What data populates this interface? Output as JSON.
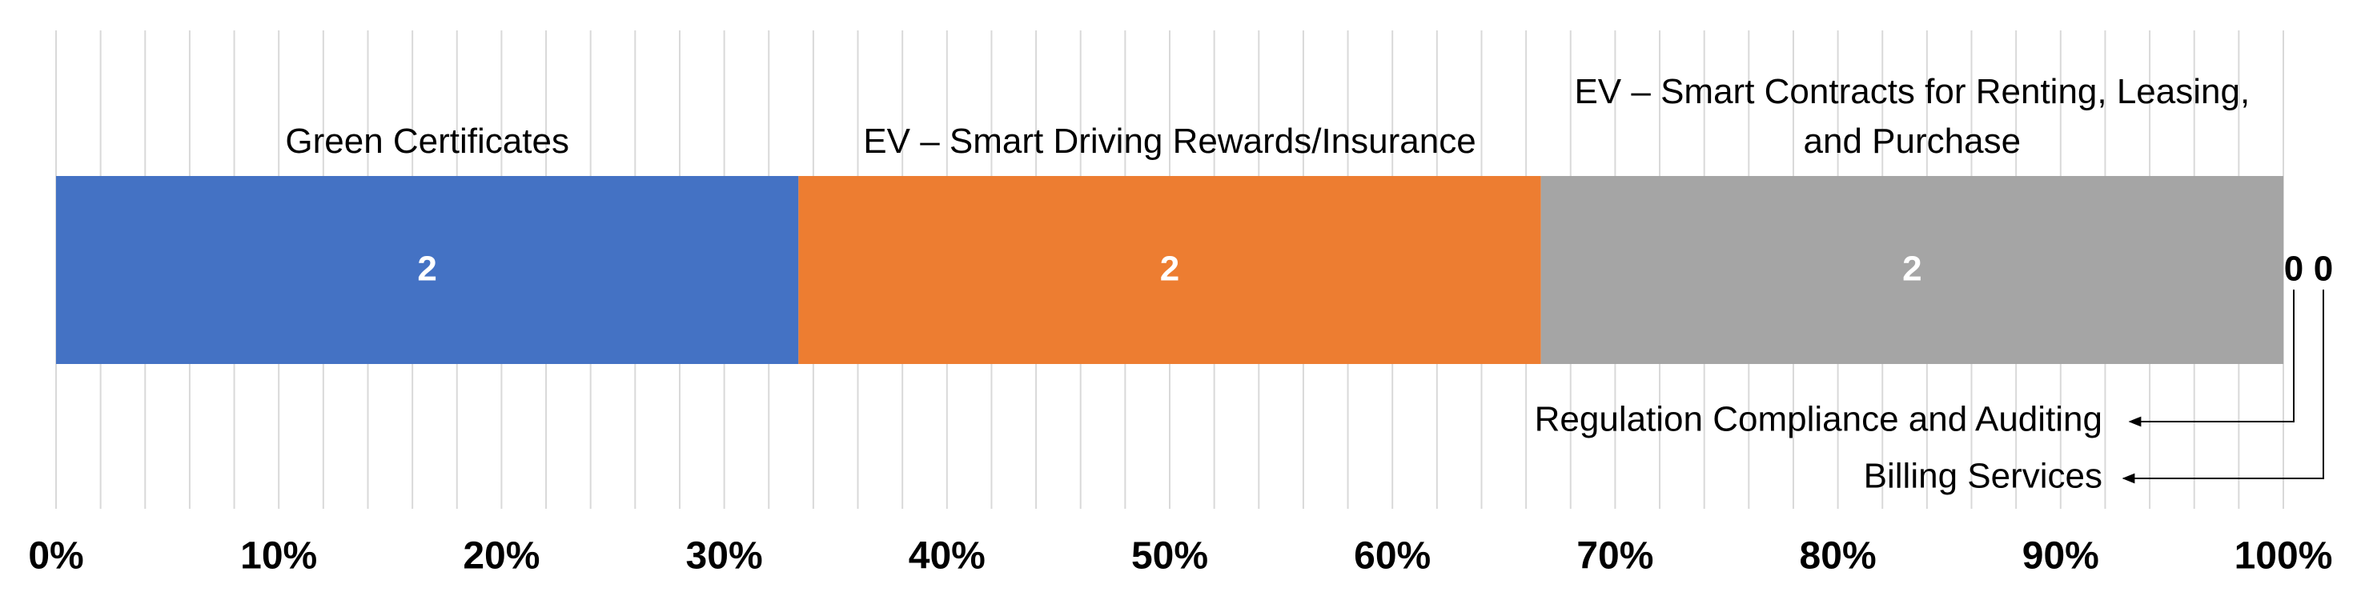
{
  "chart_data": {
    "type": "bar",
    "orientation": "horizontal",
    "stacked": "percent",
    "series": [
      {
        "name": "Green Certificates",
        "color": "#4472c4",
        "values": [
          2
        ]
      },
      {
        "name": "EV – Smart Driving Rewards/Insurance",
        "color": "#ed7d31",
        "values": [
          2
        ]
      },
      {
        "name": "EV – Smart Contracts for Renting, Leasing, and Purchase",
        "color": "#a5a5a5",
        "values": [
          2
        ]
      },
      {
        "name": "Regulation Compliance and Auditing",
        "color": "#ffc000",
        "values": [
          0
        ]
      },
      {
        "name": "Billing Services",
        "color": "#5b9bd5",
        "values": [
          0
        ]
      }
    ],
    "xlim": [
      0,
      100
    ],
    "xticks": [
      {
        "value": 0,
        "label": "0%"
      },
      {
        "value": 10,
        "label": "10%"
      },
      {
        "value": 20,
        "label": "20%"
      },
      {
        "value": 30,
        "label": "30%"
      },
      {
        "value": 40,
        "label": "40%"
      },
      {
        "value": 50,
        "label": "50%"
      },
      {
        "value": 60,
        "label": "60%"
      },
      {
        "value": 70,
        "label": "70%"
      },
      {
        "value": 80,
        "label": "80%"
      },
      {
        "value": 90,
        "label": "90%"
      },
      {
        "value": 100,
        "label": "100%"
      }
    ],
    "grid": true
  }
}
